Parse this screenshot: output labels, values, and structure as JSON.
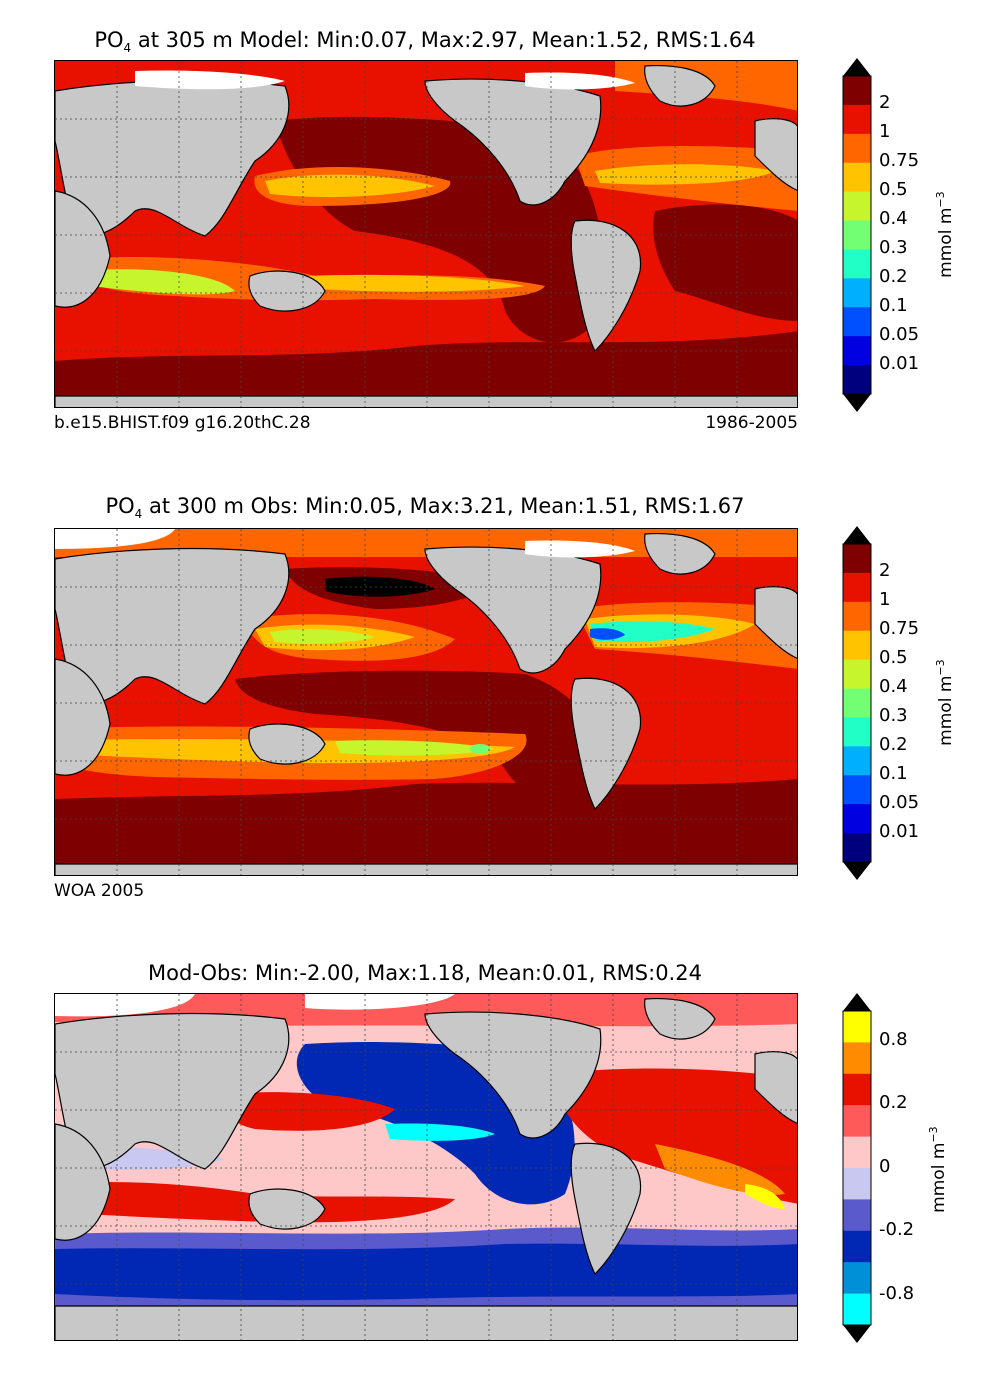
{
  "panels": [
    {
      "title_prefix": "PO",
      "title_sub": "4",
      "title_rest": " at 305 m Model: Min:0.07, Max:2.97, Mean:1.52, RMS:1.64",
      "note_left": "b.e15.BHIST.f09 g16.20thC.28",
      "note_right": "1986-2005",
      "colorbar_labels": [
        "2",
        "1",
        "0.75",
        "0.5",
        "0.4",
        "0.3",
        "0.2",
        "0.1",
        "0.05",
        "0.01"
      ],
      "colorbar_colors": [
        "#7f0000",
        "#e81100",
        "#ff6600",
        "#ffc300",
        "#c6f52d",
        "#73ff73",
        "#21ffc6",
        "#00b0ff",
        "#0050ff",
        "#0000e0",
        "#00007f"
      ],
      "unit_text": "mmol m",
      "unit_sup": "−3"
    },
    {
      "title_prefix": "PO",
      "title_sub": "4",
      "title_rest": " at 300 m Obs: Min:0.05, Max:3.21, Mean:1.51, RMS:1.67",
      "note_left": "WOA 2005",
      "note_right": "",
      "colorbar_labels": [
        "2",
        "1",
        "0.75",
        "0.5",
        "0.4",
        "0.3",
        "0.2",
        "0.1",
        "0.05",
        "0.01"
      ],
      "colorbar_colors": [
        "#7f0000",
        "#e81100",
        "#ff6600",
        "#ffc300",
        "#c6f52d",
        "#73ff73",
        "#21ffc6",
        "#00b0ff",
        "#0050ff",
        "#0000e0",
        "#00007f"
      ],
      "unit_text": "mmol m",
      "unit_sup": "−3"
    },
    {
      "title_prefix": "",
      "title_sub": "",
      "title_rest": "Mod-Obs: Min:-2.00, Max:1.18, Mean:0.01, RMS:0.24",
      "note_left": "",
      "note_right": "",
      "colorbar_labels": [
        "0.8",
        "0.2",
        "0",
        "-0.2",
        "-0.8"
      ],
      "colorbar_colors": [
        "#ffff00",
        "#ff8c00",
        "#e81100",
        "#ff5a5a",
        "#ffc8c8",
        "#c8c8f0",
        "#5a5acd",
        "#0028b4",
        "#0090d8",
        "#00ffff"
      ],
      "unit_text": "mmol m",
      "unit_sup": "−3"
    }
  ],
  "colors": {
    "land": "#c8c8c8",
    "ice": "#ffffff",
    "grid": "#444444"
  }
}
